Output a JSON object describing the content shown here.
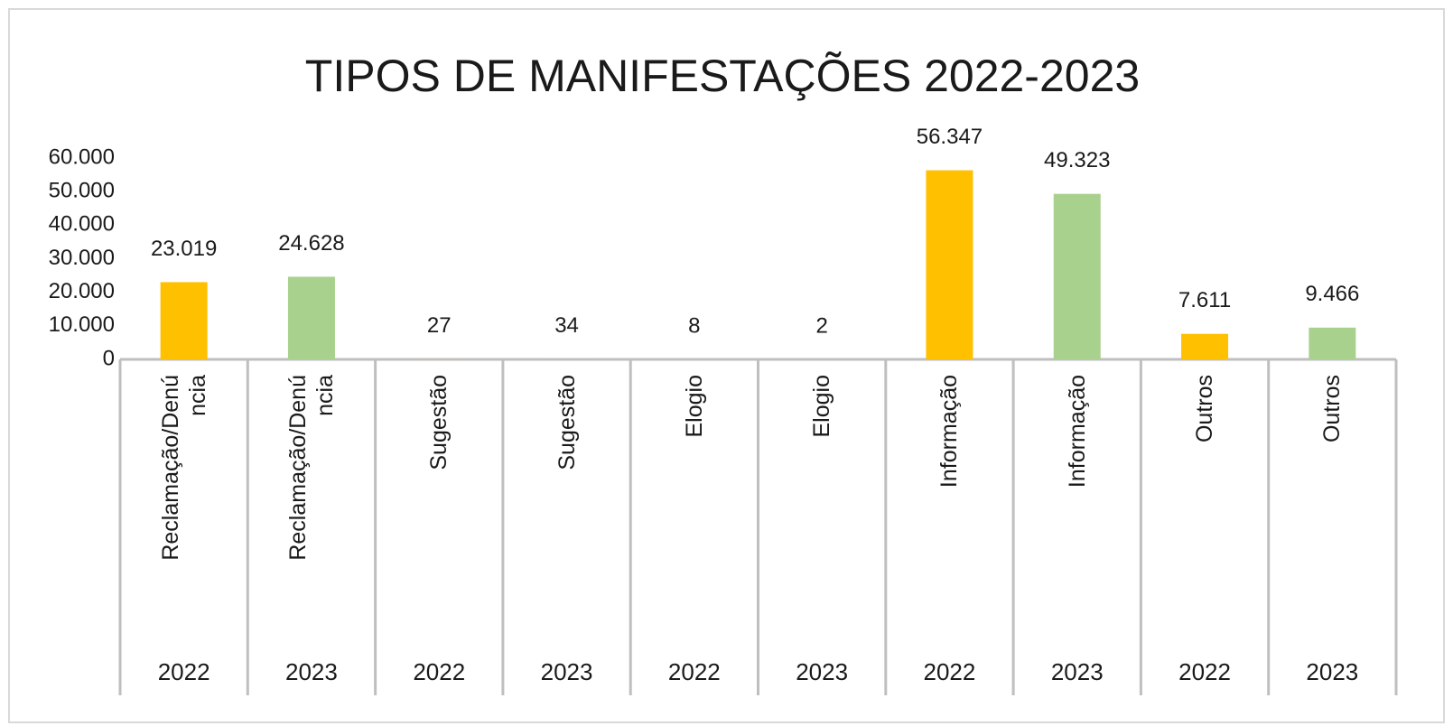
{
  "chart_data": {
    "type": "bar",
    "title": "TIPOS DE MANIFESTAÇÕES 2022-2023",
    "categories": [
      "Reclamação/Denúncia",
      "Reclamação/Denúncia",
      "Sugestão",
      "Sugestão",
      "Elogio",
      "Elogio",
      "Informação",
      "Informação",
      "Outros",
      "Outros"
    ],
    "years": [
      "2022",
      "2023",
      "2022",
      "2023",
      "2022",
      "2023",
      "2022",
      "2023",
      "2022",
      "2023"
    ],
    "values": [
      23019,
      24628,
      27,
      34,
      8,
      2,
      56347,
      49323,
      7611,
      9466
    ],
    "value_labels": [
      "23.019",
      "24.628",
      "27",
      "34",
      "8",
      "2",
      "56.347",
      "49.323",
      "7.611",
      "9.466"
    ],
    "colors": [
      "#ffc000",
      "#a9d18e",
      "#ffc000",
      "#a9d18e",
      "#ffc000",
      "#a9d18e",
      "#ffc000",
      "#a9d18e",
      "#ffc000",
      "#a9d18e"
    ],
    "ylim": [
      0,
      60000
    ],
    "yticks": [
      0,
      {
        "value": 10000,
        "label": "10.000"
      },
      {
        "value": 20000,
        "label": "20.000"
      },
      {
        "value": 30000,
        "label": "30.000"
      },
      {
        "value": 40000,
        "label": "40.000"
      },
      {
        "value": 50000,
        "label": "50.000"
      },
      {
        "value": 60000,
        "label": "60.000"
      }
    ]
  }
}
